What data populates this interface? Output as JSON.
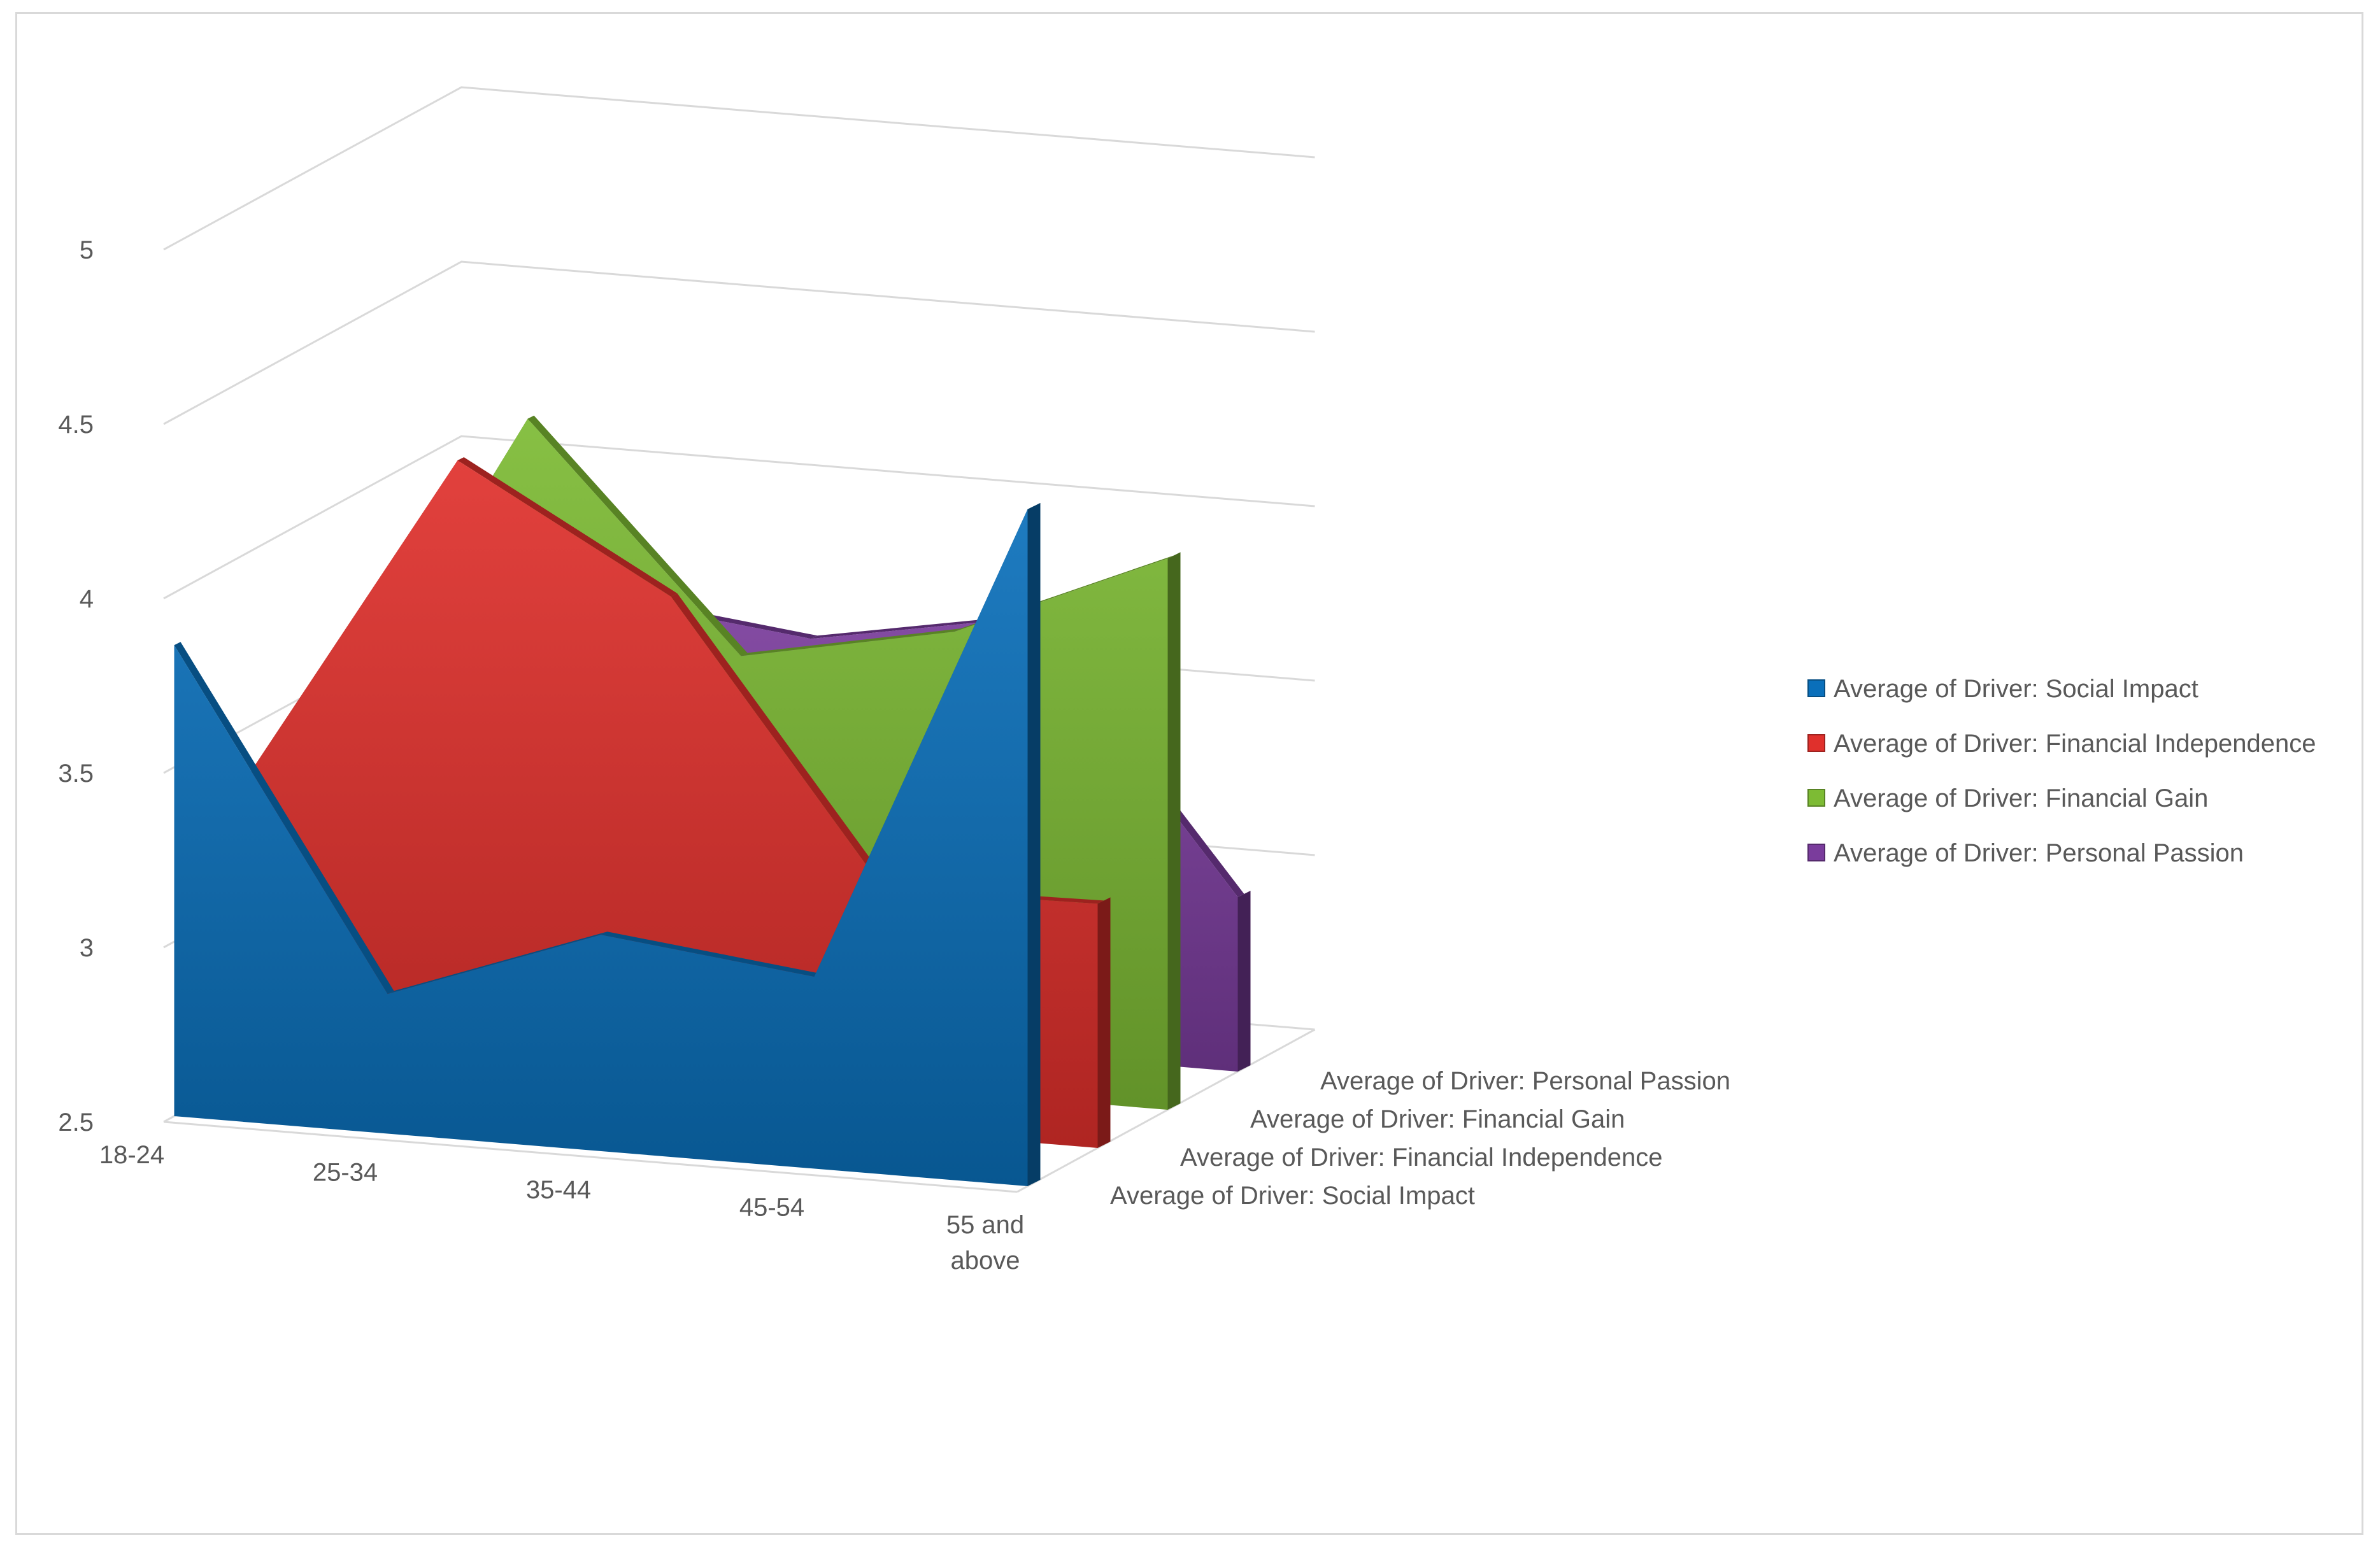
{
  "chart_data": {
    "type": "area",
    "subtype": "3d-area",
    "title": "",
    "xlabel": "",
    "ylabel": "",
    "categories": [
      "18-24",
      "25-34",
      "35-44",
      "45-54",
      "55 and above"
    ],
    "ylim": [
      2.5,
      5
    ],
    "yticks": [
      "2.5",
      "3",
      "3.5",
      "4",
      "4.5",
      "5"
    ],
    "series": [
      {
        "name": "Average of Driver: Social Impact",
        "values": [
          3.85,
          2.9,
          3.12,
          3.05,
          4.44
        ],
        "color": "#0a6fba"
      },
      {
        "name": "Average of Driver: Financial Independence",
        "values": [
          3.35,
          4.32,
          3.98,
          3.19,
          3.2
        ],
        "color": "#e0302c"
      },
      {
        "name": "Average of Driver: Financial Gain",
        "values": [
          3.28,
          4.33,
          3.7,
          3.82,
          4.08
        ],
        "color": "#7dbb34"
      },
      {
        "name": "Average of Driver: Personal Passion",
        "values": [
          3.56,
          3.71,
          3.64,
          3.75,
          3.0
        ],
        "color": "#7a3c9c"
      }
    ],
    "depth_labels": [
      "Average of Driver: Social Impact",
      "Average of Driver: Financial Independence",
      "Average of Driver: Financial Gain",
      "Average of Driver: Personal Passion"
    ],
    "grid": true,
    "legend": "right"
  }
}
